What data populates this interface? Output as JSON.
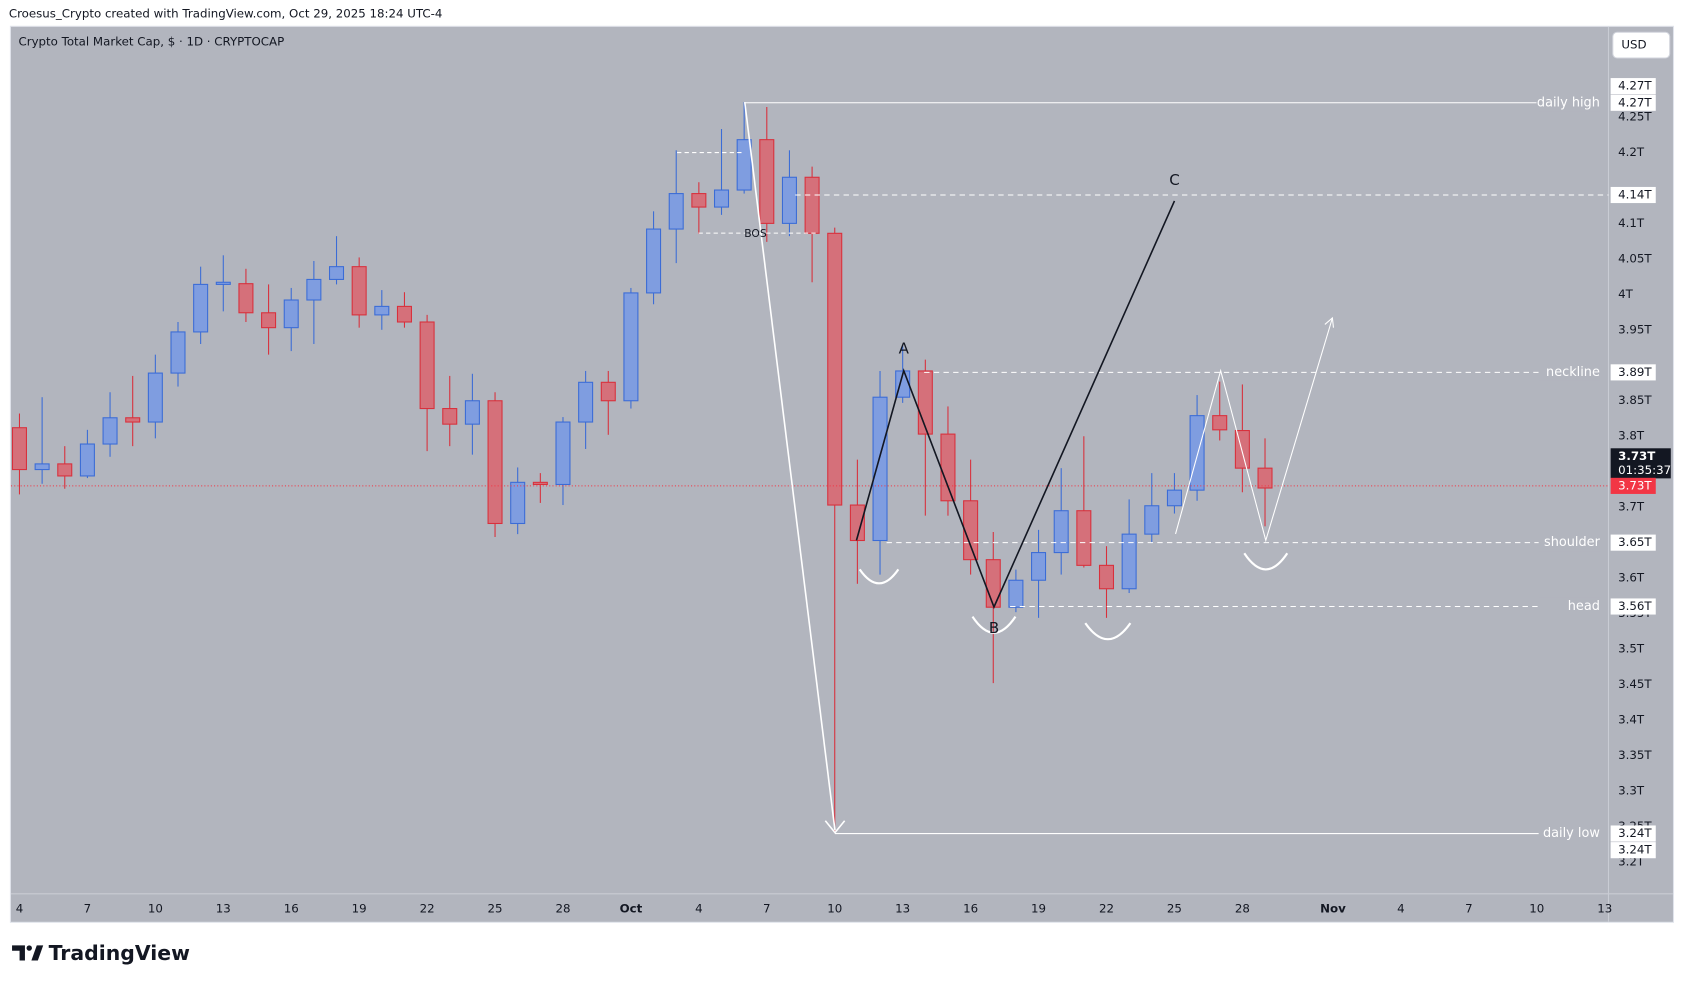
{
  "header": {
    "credit": "Croesus_Crypto created with TradingView.com, Oct 29, 2025 18:24 UTC-4",
    "brand": "TradingView"
  },
  "chart_data": {
    "type": "candlestick",
    "title": "Crypto Total Market Cap, $ · 1D · CRYPTOCAP",
    "currency": "USD",
    "x": [
      "2025-09-04",
      "2025-09-05",
      "2025-09-06",
      "2025-09-07",
      "2025-09-08",
      "2025-09-09",
      "2025-09-10",
      "2025-09-11",
      "2025-09-12",
      "2025-09-13",
      "2025-09-14",
      "2025-09-15",
      "2025-09-16",
      "2025-09-17",
      "2025-09-18",
      "2025-09-19",
      "2025-09-20",
      "2025-09-21",
      "2025-09-22",
      "2025-09-23",
      "2025-09-24",
      "2025-09-25",
      "2025-09-26",
      "2025-09-27",
      "2025-09-28",
      "2025-09-29",
      "2025-09-30",
      "2025-10-01",
      "2025-10-02",
      "2025-10-03",
      "2025-10-04",
      "2025-10-05",
      "2025-10-06",
      "2025-10-07",
      "2025-10-08",
      "2025-10-09",
      "2025-10-10",
      "2025-10-11",
      "2025-10-12",
      "2025-10-13",
      "2025-10-14",
      "2025-10-15",
      "2025-10-16",
      "2025-10-17",
      "2025-10-18",
      "2025-10-19",
      "2025-10-20",
      "2025-10-21",
      "2025-10-22",
      "2025-10-23",
      "2025-10-24",
      "2025-10-25",
      "2025-10-26",
      "2025-10-27",
      "2025-10-28",
      "2025-10-29"
    ],
    "open": [
      3.812,
      3.753,
      3.761,
      3.744,
      3.789,
      3.826,
      3.82,
      3.889,
      3.947,
      4.014,
      4.015,
      3.974,
      3.953,
      3.992,
      4.021,
      4.039,
      3.971,
      3.983,
      3.961,
      3.839,
      3.817,
      3.85,
      3.677,
      3.735,
      3.732,
      3.82,
      3.876,
      3.85,
      4.002,
      4.092,
      4.142,
      4.123,
      4.147,
      4.218,
      4.1,
      4.165,
      4.086,
      3.703,
      3.653,
      3.855,
      3.892,
      3.803,
      3.709,
      3.626,
      3.559,
      3.597,
      3.636,
      3.695,
      3.618,
      3.585,
      3.662,
      3.702,
      3.724,
      3.829,
      3.808,
      3.755
    ],
    "high": [
      3.832,
      3.855,
      3.786,
      3.809,
      3.862,
      3.885,
      3.915,
      3.961,
      4.039,
      4.055,
      4.036,
      4.014,
      4.009,
      4.047,
      4.082,
      4.052,
      4.006,
      4.003,
      3.971,
      3.885,
      3.888,
      3.862,
      3.756,
      3.748,
      3.827,
      3.892,
      3.892,
      4.009,
      4.117,
      4.203,
      4.158,
      4.233,
      4.271,
      4.264,
      4.203,
      4.18,
      4.094,
      3.767,
      3.892,
      3.927,
      3.908,
      3.842,
      3.767,
      3.665,
      3.612,
      3.668,
      3.755,
      3.8,
      3.645,
      3.711,
      3.748,
      3.748,
      3.858,
      3.877,
      3.873,
      3.797
    ],
    "low": [
      3.718,
      3.733,
      3.726,
      3.741,
      3.771,
      3.786,
      3.797,
      3.87,
      3.93,
      3.976,
      3.961,
      3.915,
      3.92,
      3.93,
      4.014,
      3.953,
      3.95,
      3.953,
      3.779,
      3.786,
      3.774,
      3.658,
      3.662,
      3.706,
      3.703,
      3.782,
      3.802,
      3.839,
      3.986,
      4.044,
      4.085,
      4.112,
      4.142,
      4.074,
      4.082,
      4.017,
      3.241,
      3.592,
      3.605,
      3.847,
      3.688,
      3.688,
      3.605,
      3.452,
      3.552,
      3.544,
      3.605,
      3.615,
      3.544,
      3.579,
      3.65,
      3.691,
      3.709,
      3.794,
      3.721,
      3.673
    ],
    "close": [
      3.753,
      3.761,
      3.744,
      3.789,
      3.826,
      3.82,
      3.889,
      3.947,
      4.014,
      4.017,
      3.974,
      3.953,
      3.992,
      4.021,
      4.039,
      3.971,
      3.983,
      3.961,
      3.839,
      3.817,
      3.85,
      3.677,
      3.735,
      3.732,
      3.82,
      3.876,
      3.85,
      4.002,
      4.092,
      4.142,
      4.123,
      4.147,
      4.218,
      4.1,
      4.165,
      4.086,
      3.703,
      3.653,
      3.855,
      3.892,
      3.803,
      3.709,
      3.626,
      3.559,
      3.597,
      3.636,
      3.695,
      3.618,
      3.585,
      3.662,
      3.702,
      3.724,
      3.829,
      3.809,
      3.755,
      3.727
    ],
    "up_color": "#3b6cd6",
    "up_fill": "#7f9de0",
    "down_color": "#d8303c",
    "down_fill": "#d5707a",
    "xlim": [
      "2025-09-03T15:00:00Z",
      "2025-11-13T04:00:00Z"
    ],
    "xticks": [
      {
        "value": "2025-09-04",
        "label": "4"
      },
      {
        "value": "2025-09-07",
        "label": "7"
      },
      {
        "value": "2025-09-10",
        "label": "10"
      },
      {
        "value": "2025-09-13",
        "label": "13"
      },
      {
        "value": "2025-09-16",
        "label": "16"
      },
      {
        "value": "2025-09-19",
        "label": "19"
      },
      {
        "value": "2025-09-22",
        "label": "22"
      },
      {
        "value": "2025-09-25",
        "label": "25"
      },
      {
        "value": "2025-09-28",
        "label": "28"
      },
      {
        "value": "2025-10-01",
        "label": "Oct"
      },
      {
        "value": "2025-10-04",
        "label": "4"
      },
      {
        "value": "2025-10-07",
        "label": "7"
      },
      {
        "value": "2025-10-10",
        "label": "10"
      },
      {
        "value": "2025-10-13",
        "label": "13"
      },
      {
        "value": "2025-10-16",
        "label": "16"
      },
      {
        "value": "2025-10-19",
        "label": "19"
      },
      {
        "value": "2025-10-22",
        "label": "22"
      },
      {
        "value": "2025-10-25",
        "label": "25"
      },
      {
        "value": "2025-10-28",
        "label": "28"
      },
      {
        "value": "2025-11-01",
        "label": "Nov"
      },
      {
        "value": "2025-11-04",
        "label": "4"
      },
      {
        "value": "2025-11-07",
        "label": "7"
      },
      {
        "value": "2025-11-10",
        "label": "10"
      },
      {
        "value": "2025-11-13",
        "label": "13"
      }
    ],
    "ylim": [
      3.155,
      4.377
    ],
    "yticks": [
      {
        "value": 4.25,
        "label": "4.25T"
      },
      {
        "value": 4.2,
        "label": "4.2T"
      },
      {
        "value": 4.1,
        "label": "4.1T"
      },
      {
        "value": 4.05,
        "label": "4.05T"
      },
      {
        "value": 4,
        "label": "4T"
      },
      {
        "value": 3.95,
        "label": "3.95T"
      },
      {
        "value": 3.85,
        "label": "3.85T"
      },
      {
        "value": 3.8,
        "label": "3.8T"
      },
      {
        "value": 3.7,
        "label": "3.7T"
      },
      {
        "value": 3.6,
        "label": "3.6T"
      },
      {
        "value": 3.55,
        "label": "3.55T"
      },
      {
        "value": 3.5,
        "label": "3.5T"
      },
      {
        "value": 3.45,
        "label": "3.45T"
      },
      {
        "value": 3.4,
        "label": "3.4T"
      },
      {
        "value": 3.35,
        "label": "3.35T"
      },
      {
        "value": 3.3,
        "label": "3.3T"
      },
      {
        "value": 3.25,
        "label": "3.25T"
      },
      {
        "value": 3.2,
        "label": "3.2T"
      }
    ],
    "grid": false,
    "levels": [
      {
        "value": 4.27,
        "label": "4.27T",
        "text": "daily high"
      },
      {
        "value": 4.27,
        "label": "4.27T"
      },
      {
        "value": 4.14,
        "label": "4.14T"
      },
      {
        "value": 3.89,
        "label": "3.89T",
        "text": "neckline"
      },
      {
        "value": 3.65,
        "label": "3.65T",
        "text": "shoulder"
      },
      {
        "value": 3.56,
        "label": "3.56T",
        "text": "head"
      },
      {
        "value": 3.24,
        "label": "3.24T",
        "text": "daily low"
      },
      {
        "value": 3.24,
        "label": "3.24T"
      }
    ],
    "current": [
      {
        "value": 3.73,
        "label": "3.73T",
        "countdown": "01:35:37"
      },
      {
        "value": 3.73,
        "label": "3.73T"
      }
    ],
    "annotations": [
      "A",
      "B",
      "C",
      "BOS"
    ]
  }
}
